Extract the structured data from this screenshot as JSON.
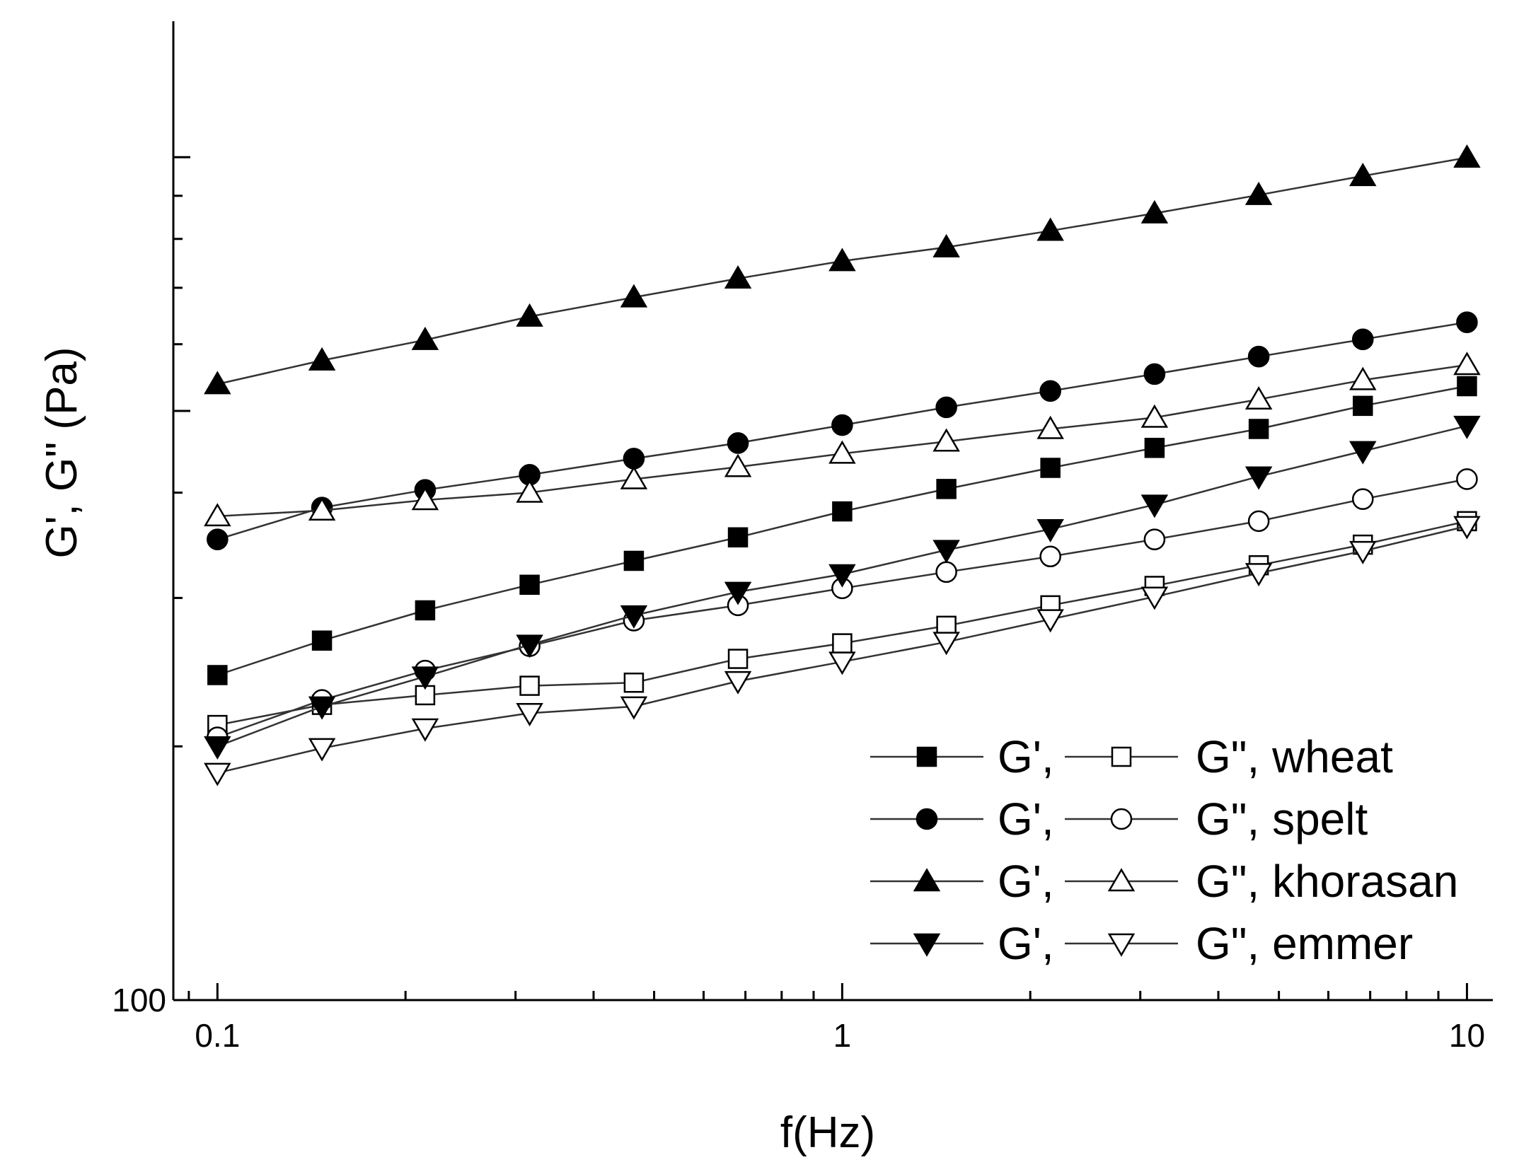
{
  "chart_data": {
    "type": "line",
    "title": "",
    "xlabel": "f(Hz)",
    "ylabel": "G', G\" (Pa)",
    "xscale": "log",
    "yscale": "log",
    "xlim": [
      0.085,
      11
    ],
    "ylim": [
      100,
      1450
    ],
    "x_tick_labels": [
      {
        "value": 0.1,
        "label": "0.1"
      },
      {
        "value": 1,
        "label": "1"
      },
      {
        "value": 10,
        "label": "10"
      }
    ],
    "y_tick_labels": [
      {
        "value": 100,
        "label": "100"
      }
    ],
    "x": [
      0.1,
      0.147,
      0.215,
      0.316,
      0.464,
      0.681,
      1,
      1.468,
      2.154,
      3.162,
      4.642,
      6.813,
      10
    ],
    "series": [
      {
        "name": "G', wheat",
        "marker": "square",
        "filled": true,
        "values": [
          243,
          267,
          290,
          311,
          332,
          354,
          380,
          404,
          428,
          452,
          476,
          507,
          535
        ]
      },
      {
        "name": "G\", wheat",
        "marker": "square",
        "filled": false,
        "values": [
          212,
          224,
          230,
          236,
          238,
          254,
          265,
          278,
          294,
          310,
          328,
          347,
          370
        ]
      },
      {
        "name": "G', spelt",
        "marker": "circle",
        "filled": true,
        "values": [
          352,
          384,
          403,
          420,
          439,
          458,
          481,
          505,
          528,
          553,
          580,
          608,
          637
        ]
      },
      {
        "name": "G\", spelt",
        "marker": "circle",
        "filled": false,
        "values": [
          205,
          227,
          246,
          263,
          282,
          294,
          308,
          322,
          336,
          352,
          370,
          393,
          415
        ]
      },
      {
        "name": "G', khorasan",
        "marker": "triangle-up",
        "filled": true,
        "values": [
          538,
          574,
          607,
          647,
          682,
          718,
          753,
          782,
          818,
          858,
          902,
          950,
          999
        ]
      },
      {
        "name": "G\", khorasan",
        "marker": "triangle-up",
        "filled": false,
        "values": [
          375,
          381,
          392,
          400,
          415,
          429,
          445,
          460,
          476,
          491,
          516,
          544,
          567
        ]
      },
      {
        "name": "G', emmer",
        "marker": "triangle-down",
        "filled": true,
        "values": [
          200,
          223,
          242,
          264,
          286,
          305,
          320,
          342,
          362,
          387,
          418,
          448,
          480
        ]
      },
      {
        "name": "G\", emmer",
        "marker": "triangle-down",
        "filled": false,
        "values": [
          186,
          199,
          210,
          219,
          223,
          239,
          252,
          266,
          283,
          301,
          321,
          341,
          365
        ]
      }
    ],
    "legend": {
      "placement": "bottom-right",
      "entries": [
        {
          "g1": "G',",
          "g2": "G\", wheat",
          "marker": "square"
        },
        {
          "g1": "G',",
          "g2": "G\", spelt",
          "marker": "circle"
        },
        {
          "g1": "G',",
          "g2": "G\", khorasan",
          "marker": "triangle-up"
        },
        {
          "g1": "G',",
          "g2": "G\", emmer",
          "marker": "triangle-down"
        }
      ]
    },
    "colors": {
      "line": "#333333",
      "marker": "#000000",
      "background": "#ffffff"
    }
  }
}
